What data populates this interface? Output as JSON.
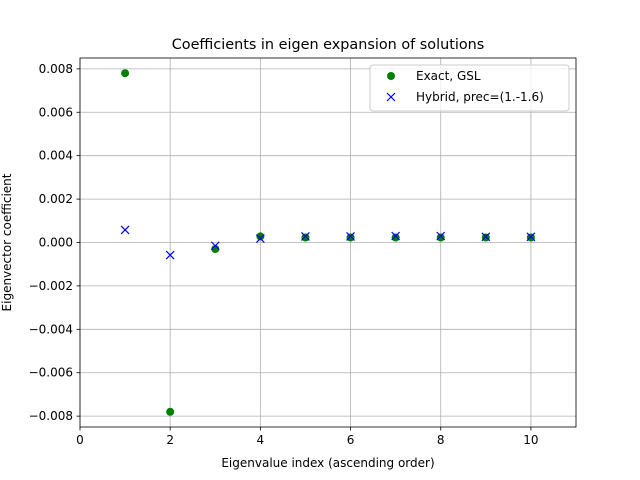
{
  "chart_data": {
    "type": "scatter",
    "title": "Coefficients in eigen expansion of solutions",
    "xlabel": "Eigenvalue index (ascending order)",
    "ylabel": "Eigenvector coefficient",
    "xlim": [
      0,
      11
    ],
    "ylim": [
      -0.0085,
      0.0085
    ],
    "x_ticks": [
      0,
      2,
      4,
      6,
      8,
      10
    ],
    "x_tick_labels": [
      "0",
      "2",
      "4",
      "6",
      "8",
      "10"
    ],
    "y_ticks": [
      -0.008,
      -0.006,
      -0.004,
      -0.002,
      0.0,
      0.002,
      0.004,
      0.006,
      0.008
    ],
    "y_tick_labels": [
      "−0.008",
      "−0.006",
      "−0.004",
      "−0.002",
      "0.000",
      "0.002",
      "0.004",
      "0.006",
      "0.008"
    ],
    "grid": true,
    "legend_position": "top-right",
    "series": [
      {
        "name": "Exact, GSL",
        "marker": "circle",
        "color": "#008000",
        "x": [
          1,
          2,
          3,
          4,
          5,
          6,
          7,
          8,
          9,
          10
        ],
        "y": [
          0.0078,
          -0.0078,
          -0.0003,
          0.00028,
          0.00023,
          0.00023,
          0.00023,
          0.00023,
          0.00023,
          0.00023
        ]
      },
      {
        "name": "Hybrid, prec=(1.-1.6)",
        "marker": "x",
        "color": "#0000ff",
        "x": [
          1,
          2,
          3,
          4,
          5,
          6,
          7,
          8,
          9,
          10
        ],
        "y": [
          0.00058,
          -0.00058,
          -0.00015,
          0.00018,
          0.00028,
          0.00028,
          0.0003,
          0.0003,
          0.00026,
          0.00026
        ]
      }
    ]
  }
}
